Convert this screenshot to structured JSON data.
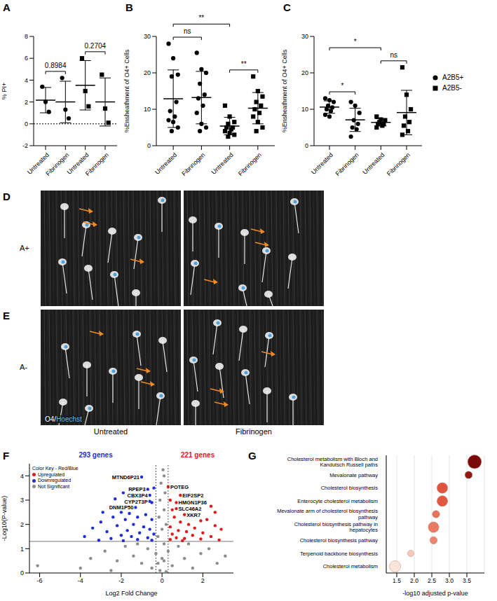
{
  "chart_data": [
    {
      "label": "A",
      "type": "scatter",
      "categories": [
        "Untreated",
        "Fibrinogen",
        "Untreated",
        "Fibrinogen"
      ],
      "ylabel": "% PI+",
      "ylim": [
        -2,
        8
      ],
      "yticks": [
        -2,
        0,
        2,
        4,
        6,
        8
      ],
      "reference_line": 0,
      "series": [
        {
          "marker": "circle",
          "color": "#000000",
          "positions": [
            0,
            1
          ],
          "points": [
            [
              3.4,
              2.0,
              1.1
            ],
            [
              4.2,
              1.3,
              0.5
            ]
          ],
          "mean": [
            2.17,
            2.0
          ],
          "sd": [
            1.16,
            1.9
          ]
        },
        {
          "marker": "square",
          "color": "#000000",
          "positions": [
            2,
            3
          ],
          "points": [
            [
              6.0,
              3.0,
              1.6
            ],
            [
              4.5,
              1.4,
              0.1
            ]
          ],
          "mean": [
            3.53,
            2.0
          ],
          "sd": [
            2.26,
            2.2
          ]
        }
      ],
      "comparisons": [
        {
          "from": 0,
          "to": 1,
          "label": "0.8984"
        },
        {
          "from": 2,
          "to": 3,
          "label": "0.2704"
        }
      ]
    },
    {
      "label": "B",
      "type": "scatter",
      "categories": [
        "Untreated",
        "Fibrinogen",
        "Untreated",
        "Fibrinogen"
      ],
      "ylabel": "%Ensheathment of O4+ Cells",
      "ylim": [
        0,
        30
      ],
      "yticks": [
        0,
        10,
        20,
        30
      ],
      "series": [
        {
          "marker": "circle",
          "color": "#000000",
          "positions": [
            0,
            1
          ],
          "points": [
            [
              28,
              24,
              19.5,
              19,
              12,
              9.5,
              8,
              7,
              6.5,
              5,
              4
            ],
            [
              25.5,
              21,
              20,
              17,
              14,
              13,
              11,
              9,
              6,
              5,
              4
            ]
          ],
          "mean": [
            12.9,
            13.2
          ],
          "sd": [
            7.9,
            7.2
          ]
        },
        {
          "marker": "square",
          "color": "#000000",
          "positions": [
            2,
            3
          ],
          "points": [
            [
              11,
              8,
              6.5,
              6,
              5,
              5,
              4.5,
              4,
              3.5,
              3,
              2.5
            ],
            [
              19,
              15,
              13.5,
              12,
              11,
              10,
              9,
              8,
              6.5,
              5,
              4
            ]
          ],
          "mean": [
            5.4,
            10.3
          ],
          "sd": [
            2.4,
            4.3
          ]
        }
      ],
      "comparisons": [
        {
          "from": 0,
          "to": 1,
          "label": "ns"
        },
        {
          "from": 2,
          "to": 3,
          "label": "**"
        },
        {
          "from": 0,
          "to": 2,
          "label": "**"
        }
      ]
    },
    {
      "label": "C",
      "type": "scatter",
      "categories": [
        "Untreated",
        "Fibrinogen",
        "Untreated",
        "Fibrinogen"
      ],
      "ylim": [
        0,
        30
      ],
      "yticks": [
        0,
        10,
        20,
        30
      ],
      "ylabel": "%Ensheathment of O4+ Cells",
      "legend": "right",
      "series": [
        {
          "name": "A2B5+",
          "marker": "circle",
          "color": "#000000",
          "positions": [
            0,
            1
          ],
          "points": [
            [
              13,
              12.5,
              12,
              11,
              10.5,
              10,
              9.5,
              8.5,
              8
            ],
            [
              12,
              11,
              9,
              7,
              6,
              5,
              4.5,
              2.5
            ]
          ],
          "mean": [
            10.6,
            7.1
          ],
          "sd": [
            1.7,
            3.2
          ]
        },
        {
          "name": "A2B5-",
          "marker": "square",
          "color": "#000000",
          "positions": [
            2,
            3
          ],
          "points": [
            [
              8,
              7.2,
              7,
              6.5,
              6,
              6,
              5.5,
              5
            ],
            [
              21.5,
              14,
              10,
              8,
              6.5,
              5.5,
              4,
              3
            ]
          ],
          "mean": [
            6.4,
            9.1
          ],
          "sd": [
            1.0,
            6.1
          ]
        }
      ],
      "comparisons": [
        {
          "from": 0,
          "to": 1,
          "label": "*"
        },
        {
          "from": 2,
          "to": 3,
          "label": "ns"
        },
        {
          "from": 0,
          "to": 2,
          "label": "*"
        }
      ]
    },
    {
      "label": "F",
      "type": "scatter",
      "xlabel": "Log2 Fold Change",
      "ylabel": "-Log10(P-value)",
      "xlim": [
        -6.5,
        3.5
      ],
      "xticks": [
        -6,
        -4,
        -2,
        0,
        2
      ],
      "ylim": [
        0,
        4.5
      ],
      "yticks": [
        0,
        1,
        2,
        3,
        4
      ],
      "legend": "upper left",
      "legend_title": "Color Key - Red/Blue",
      "thresholds": {
        "y": 1.3,
        "x": [
          -0.3,
          0.3
        ]
      },
      "series": [
        {
          "name": "Upregulated",
          "color": "#e31a1c",
          "annotation": "221 genes",
          "points": [
            [
              0.3,
              3.55
            ],
            [
              0.9,
              3.2
            ],
            [
              0.7,
              2.9
            ],
            [
              0.7,
              2.65
            ],
            [
              1.1,
              2.4
            ],
            [
              0.4,
              3.0
            ],
            [
              0.5,
              2.6
            ],
            [
              2.4,
              2.75
            ],
            [
              0.6,
              2.3
            ],
            [
              1.9,
              2.15
            ],
            [
              2.2,
              2.2
            ],
            [
              0.9,
              2.1
            ],
            [
              1.3,
              2.0
            ],
            [
              2.6,
              1.95
            ],
            [
              0.4,
              1.9
            ],
            [
              1.6,
              1.85
            ],
            [
              2.9,
              1.8
            ],
            [
              0.8,
              1.75
            ],
            [
              1.2,
              1.7
            ],
            [
              2.0,
              1.65
            ],
            [
              0.5,
              1.6
            ],
            [
              1.5,
              1.55
            ],
            [
              2.4,
              1.5
            ],
            [
              0.7,
              1.45
            ],
            [
              1.1,
              1.42
            ],
            [
              1.9,
              1.4
            ],
            [
              0.4,
              1.38
            ],
            [
              2.8,
              1.36
            ],
            [
              1.0,
              1.33
            ],
            [
              2.6,
              2.5
            ]
          ]
        },
        {
          "name": "Downregulated",
          "color": "#1f2fd1",
          "annotation": "293 genes",
          "points": [
            [
              -1.0,
              3.95
            ],
            [
              -0.7,
              3.45
            ],
            [
              -0.6,
              3.2
            ],
            [
              -0.6,
              2.95
            ],
            [
              -1.3,
              2.7
            ],
            [
              -0.4,
              3.5
            ],
            [
              -0.5,
              2.9
            ],
            [
              -1.6,
              2.45
            ],
            [
              -2.0,
              2.5
            ],
            [
              -1.2,
              2.3
            ],
            [
              -0.8,
              2.4
            ],
            [
              -2.4,
              2.3
            ],
            [
              -1.8,
              2.2
            ],
            [
              -0.5,
              2.2
            ],
            [
              -3.0,
              2.1
            ],
            [
              -1.4,
              2.0
            ],
            [
              -2.2,
              1.95
            ],
            [
              -0.9,
              1.9
            ],
            [
              -3.4,
              1.85
            ],
            [
              -0.6,
              1.8
            ],
            [
              -1.7,
              1.75
            ],
            [
              -2.7,
              1.7
            ],
            [
              -1.1,
              1.65
            ],
            [
              -0.4,
              1.6
            ],
            [
              -2.0,
              1.55
            ],
            [
              -3.8,
              1.5
            ],
            [
              -1.5,
              1.5
            ],
            [
              -0.7,
              1.45
            ],
            [
              -2.5,
              1.42
            ],
            [
              -1.2,
              1.38
            ],
            [
              -0.5,
              1.35
            ],
            [
              -3.1,
              1.35
            ],
            [
              -1.9,
              1.33
            ],
            [
              -2.3,
              3.05
            ],
            [
              -2.9,
              2.5
            ],
            [
              -1.9,
              3.3
            ]
          ]
        },
        {
          "name": "Not Significant",
          "color": "#8c8c8c",
          "points": [
            [
              0.05,
              4.25
            ],
            [
              0.1,
              4.0
            ],
            [
              -0.05,
              3.7
            ],
            [
              0.15,
              3.3
            ],
            [
              -0.1,
              3.0
            ],
            [
              0.1,
              2.6
            ],
            [
              -0.15,
              2.3
            ],
            [
              0.2,
              2.0
            ],
            [
              0.0,
              1.8
            ],
            [
              -0.2,
              1.5
            ],
            [
              0.1,
              1.2
            ],
            [
              -6.1,
              0.3
            ],
            [
              -3.5,
              0.6
            ],
            [
              -2.8,
              0.9
            ],
            [
              -2.2,
              0.5
            ],
            [
              -1.8,
              1.1
            ],
            [
              -1.4,
              0.7
            ],
            [
              -1.0,
              0.4
            ],
            [
              -0.7,
              1.0
            ],
            [
              -0.5,
              0.2
            ],
            [
              -0.3,
              0.8
            ],
            [
              -0.1,
              0.1
            ],
            [
              0.1,
              0.5
            ],
            [
              0.3,
              0.9
            ],
            [
              0.5,
              0.3
            ],
            [
              0.8,
              1.1
            ],
            [
              1.1,
              0.6
            ],
            [
              1.5,
              0.2
            ],
            [
              1.9,
              0.8
            ],
            [
              2.3,
              1.0
            ],
            [
              2.7,
              0.4
            ],
            [
              3.1,
              0.7
            ],
            [
              -4.0,
              0.2
            ],
            [
              -2.5,
              0.1
            ],
            [
              0.0,
              0.6
            ],
            [
              0.2,
              0.05
            ],
            [
              -0.2,
              0.4
            ],
            [
              1.3,
              1.2
            ],
            [
              -1.2,
              1.2
            ]
          ]
        }
      ],
      "gene_labels": [
        {
          "text": "MTND6P21",
          "x": -1.0,
          "y": 3.95
        },
        {
          "text": "RPEP3",
          "x": -0.7,
          "y": 3.45
        },
        {
          "text": "CBX3P4",
          "x": -0.6,
          "y": 3.2
        },
        {
          "text": "CYP2T3P",
          "x": -0.6,
          "y": 2.95
        },
        {
          "text": "DNM1P50",
          "x": -1.3,
          "y": 2.7
        },
        {
          "text": "POTEG",
          "x": 0.3,
          "y": 3.55
        },
        {
          "text": "EIF2SP2",
          "x": 0.9,
          "y": 3.2
        },
        {
          "text": "HMGN1P36",
          "x": 0.7,
          "y": 2.9
        },
        {
          "text": "SLC46A2",
          "x": 0.7,
          "y": 2.65
        },
        {
          "text": "XKR7",
          "x": 1.1,
          "y": 2.4
        }
      ]
    },
    {
      "label": "G",
      "type": "bubble",
      "xlabel": "-log10 adjusted p-value",
      "xlim": [
        1.2,
        4.0
      ],
      "xticks": [
        1.5,
        {
          "value": 2,
          "label": "2.0"
        },
        2.5,
        {
          "value": 3,
          "label": "3.0"
        },
        3.5
      ],
      "grid": true,
      "categories": [
        "Cholesterol metabolism with Bloch and Kandutsch Russell paths",
        "Mevalonate pathway",
        "Cholesterol biosynthesis",
        "Enterocyte cholesterol metabolism",
        "Mevalonate arm of cholesterol biosynthesis pathway",
        "Cholesterol biosynthesis pathway in hepatocytes",
        "Cholesterol biosynthesis pathway",
        "Terpenoid backbone biosynthesis",
        "Cholesterol metabolism"
      ],
      "values": [
        3.72,
        3.55,
        2.8,
        2.8,
        2.62,
        2.55,
        2.55,
        1.9,
        1.45
      ],
      "sizes": [
        12,
        3,
        7,
        7,
        3,
        7,
        3,
        2,
        8
      ],
      "colors": [
        "#7a0a0a",
        "#8e1b12",
        "#e0533d",
        "#e0583f",
        "#e8735c",
        "#ea7a62",
        "#ec8670",
        "#f6c9b8",
        "#fbe5da"
      ]
    }
  ],
  "images": {
    "columns": [
      "Untreated",
      "Fibrinogen"
    ],
    "rows": [
      {
        "label": "D",
        "row_label": "A+"
      },
      {
        "label": "E",
        "row_label": "A-"
      }
    ],
    "stain": [
      {
        "text": "O4/",
        "color": "#ffffff"
      },
      {
        "text": "Hoechst",
        "color": "#5bb7e8"
      }
    ]
  }
}
